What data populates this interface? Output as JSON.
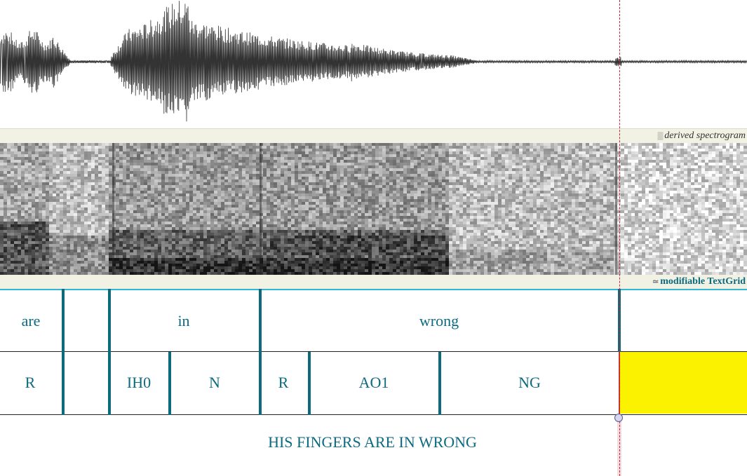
{
  "panels": {
    "spectrogram_label": "derived spectrogram",
    "spectrogram_glyph": "▒",
    "textgrid_label": "modifiable TextGrid",
    "textgrid_glyph": "≃"
  },
  "word_tier": {
    "intervals": [
      {
        "label": "are"
      },
      {
        "label": ""
      },
      {
        "label": "in"
      },
      {
        "label": "wrong"
      },
      {
        "label": ""
      }
    ]
  },
  "phone_tier": {
    "intervals": [
      {
        "label": "R"
      },
      {
        "label": ""
      },
      {
        "label": "IH0"
      },
      {
        "label": "N"
      },
      {
        "label": "R"
      },
      {
        "label": "AO1"
      },
      {
        "label": "NG"
      },
      {
        "label": ""
      }
    ],
    "selected_interval_index": 7
  },
  "sentence_tier": {
    "text": "HIS FINGERS ARE IN WRONG"
  },
  "colors": {
    "tier_text": "#0d6b80",
    "boundary": "#0e6b7e",
    "selection": "#fbf200",
    "cursor": "#c8243a"
  }
}
